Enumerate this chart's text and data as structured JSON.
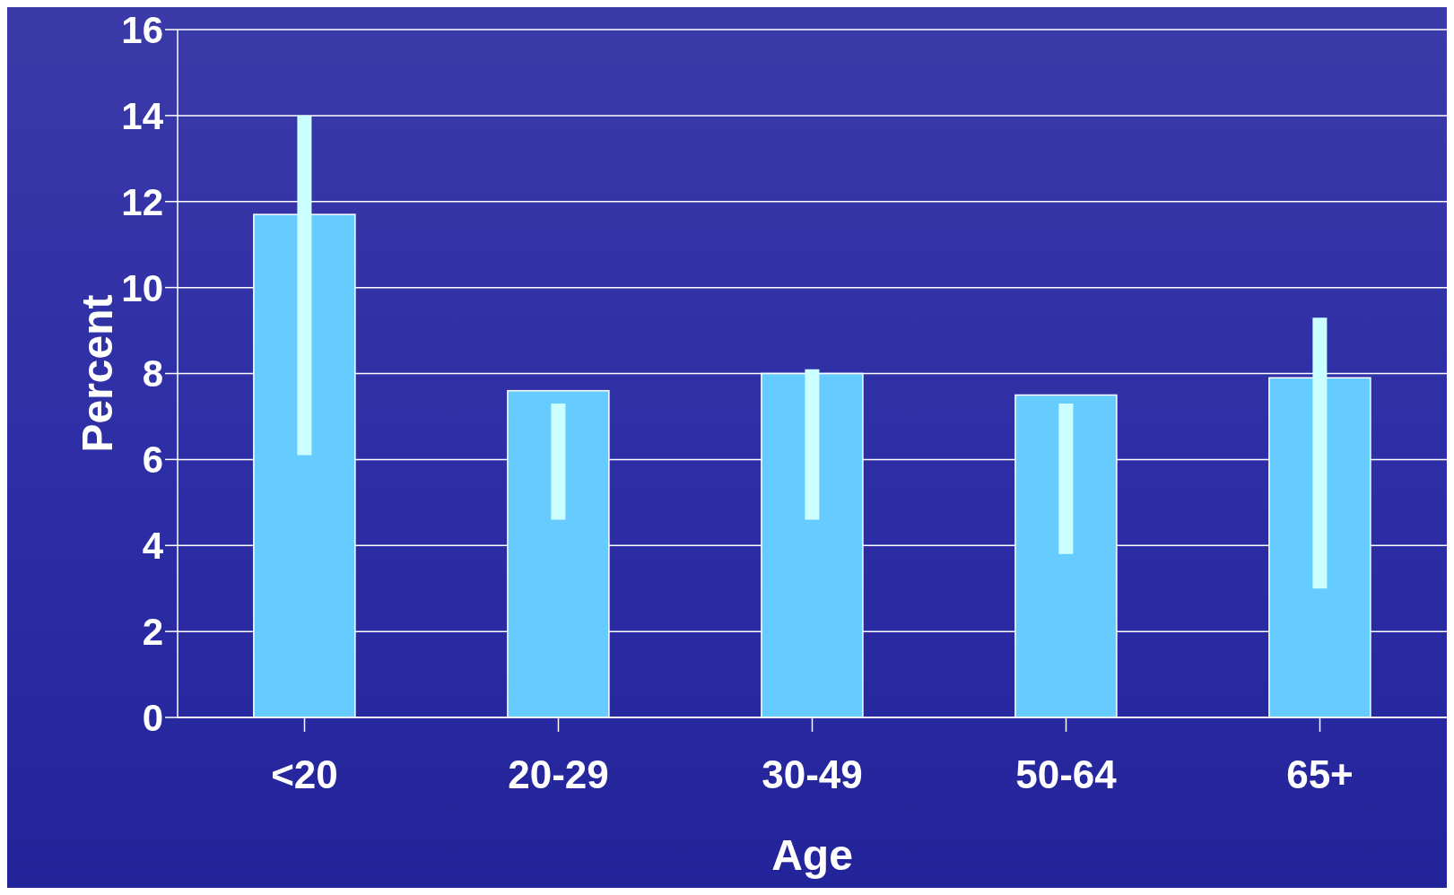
{
  "chart_data": {
    "type": "bar",
    "xlabel": "Age",
    "ylabel": "Percent",
    "categories": [
      "<20",
      "20-29",
      "30-49",
      "50-64",
      "65+"
    ],
    "values": [
      11.7,
      7.6,
      8.0,
      7.5,
      7.9
    ],
    "errors": [
      [
        6.1,
        14.0
      ],
      [
        4.6,
        7.3
      ],
      [
        4.6,
        8.1
      ],
      [
        3.8,
        7.3
      ],
      [
        3.0,
        9.3
      ]
    ],
    "color": "#66ccff",
    "ylim": [
      0,
      16
    ],
    "yticks": [
      0,
      2,
      4,
      6,
      8,
      10,
      12,
      14,
      16
    ],
    "grid": "y"
  }
}
